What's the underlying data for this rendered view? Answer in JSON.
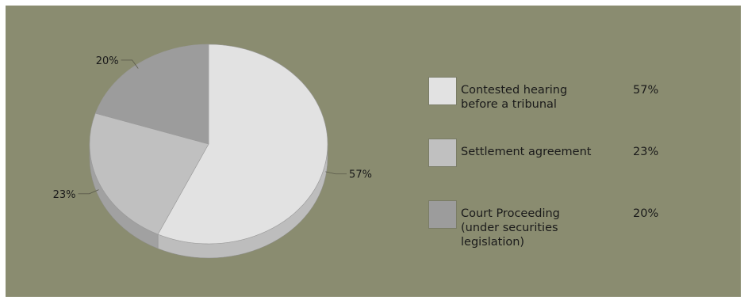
{
  "chart_data": {
    "type": "pie",
    "title": "",
    "slices": [
      {
        "label": "Contested hearing before a tribunal",
        "value": 57,
        "value_label": "57%",
        "color": "#e2e2e2",
        "side_color": "#bdbdbd"
      },
      {
        "label": "Settlement agreement",
        "value": 23,
        "value_label": "23%",
        "color": "#c0c0c0",
        "side_color": "#a1a1a1"
      },
      {
        "label": "Court Proceeding (under securities legislation)",
        "value": 20,
        "value_label": "20%",
        "color": "#9c9c9c",
        "side_color": "#858585"
      }
    ],
    "legend_position": "right"
  },
  "colors": {
    "background": "#8a8c70"
  }
}
